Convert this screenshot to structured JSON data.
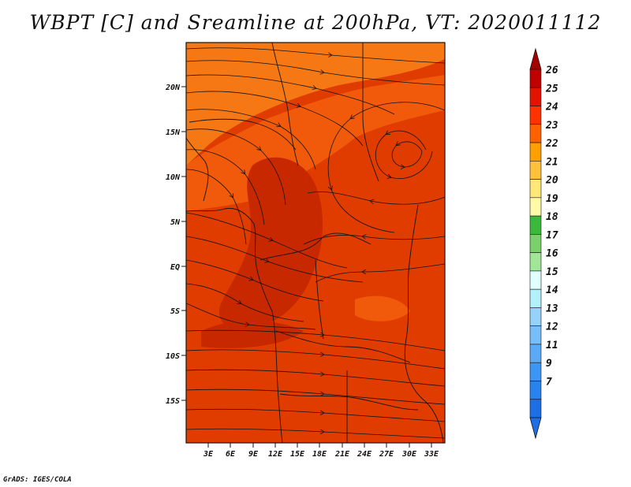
{
  "title": "WBPT [C] and Sreamline at 200hPa, VT: 2020011112",
  "credit": "GrADS: IGES/COLA",
  "map": {
    "lat_ticks": [
      "20N",
      "15N",
      "10N",
      "5N",
      "EQ",
      "5S",
      "10S",
      "15S"
    ],
    "lon_ticks": [
      "3E",
      "6E",
      "9E",
      "12E",
      "15E",
      "18E",
      "21E",
      "24E",
      "27E",
      "30E",
      "33E"
    ]
  },
  "colorbar": {
    "labels": [
      "7",
      "9",
      "11",
      "12",
      "13",
      "14",
      "15",
      "16",
      "17",
      "18",
      "19",
      "20",
      "21",
      "22",
      "23",
      "24",
      "25",
      "26"
    ],
    "colors": [
      "#1e6ee6",
      "#2882f0",
      "#3c96f5",
      "#5aaaf5",
      "#78befa",
      "#96d2fa",
      "#b4f0fa",
      "#e1ffff",
      "#a0e696",
      "#78d269",
      "#3cb93c",
      "#fffaaa",
      "#ffe878",
      "#ffc03c",
      "#ffa000",
      "#ff6000",
      "#ff3200",
      "#e11400",
      "#c00000"
    ],
    "low_color": "#1e6ee6",
    "high_color": "#a50000"
  },
  "field_colors": {
    "dark": "#c82800",
    "mid": "#e13c00",
    "warm": "#f05a0a",
    "orange": "#f57814",
    "line": "#141414"
  }
}
